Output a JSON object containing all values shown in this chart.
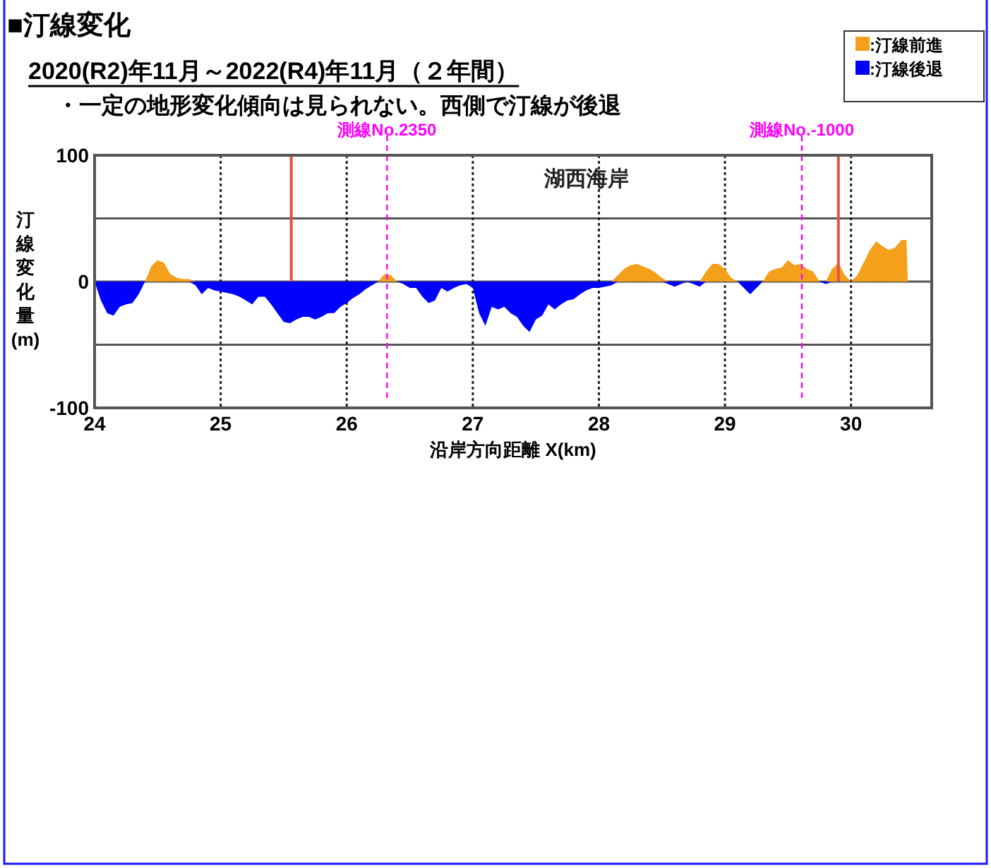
{
  "chart_data": {
    "type": "area",
    "title": "■汀線変化",
    "subtitle": "2020(R2)年11月～2022(R4)年11月（２年間）",
    "annotations": [
      "・一定の地形変化傾向は見られない。西側で汀線が後退",
      "湖西海岸"
    ],
    "xlabel": "沿岸方向距離 X(km)",
    "ylabel": "汀線変化量(m)",
    "x": [
      24,
      24.05,
      24.1,
      24.15,
      24.2,
      24.25,
      24.3,
      24.35,
      24.4,
      24.45,
      24.5,
      24.55,
      24.6,
      24.65,
      24.7,
      24.75,
      24.8,
      24.85,
      24.9,
      24.95,
      25,
      25.05,
      25.1,
      25.15,
      25.2,
      25.25,
      25.3,
      25.35,
      25.4,
      25.45,
      25.5,
      25.55,
      25.6,
      25.65,
      25.7,
      25.75,
      25.8,
      25.85,
      25.9,
      25.95,
      26,
      26.05,
      26.1,
      26.15,
      26.2,
      26.25,
      26.3,
      26.35,
      26.4,
      26.45,
      26.5,
      26.55,
      26.6,
      26.65,
      26.7,
      26.75,
      26.8,
      26.85,
      26.9,
      26.95,
      27,
      27.05,
      27.1,
      27.15,
      27.2,
      27.25,
      27.3,
      27.35,
      27.4,
      27.45,
      27.5,
      27.55,
      27.6,
      27.65,
      27.7,
      27.75,
      27.8,
      27.85,
      27.9,
      27.95,
      28,
      28.05,
      28.1,
      28.15,
      28.2,
      28.25,
      28.3,
      28.35,
      28.4,
      28.45,
      28.5,
      28.55,
      28.6,
      28.65,
      28.7,
      28.75,
      28.8,
      28.85,
      28.9,
      28.95,
      29,
      29.05,
      29.1,
      29.15,
      29.2,
      29.25,
      29.3,
      29.35,
      29.4,
      29.45,
      29.5,
      29.55,
      29.6,
      29.65,
      29.7,
      29.75,
      29.8,
      29.85,
      29.9,
      29.95,
      30,
      30.05,
      30.1,
      30.15,
      30.2,
      30.25,
      30.3,
      30.35,
      30.4,
      30.44,
      30.45
    ],
    "series": [
      {
        "name": ":汀線前進",
        "color": "#f5a01a",
        "values": [
          0,
          0,
          0,
          0,
          0,
          0,
          0,
          0,
          0,
          12,
          17,
          15,
          6,
          3,
          2,
          2,
          0,
          0,
          0,
          0,
          0,
          0,
          0,
          0,
          0,
          0,
          0,
          0,
          0,
          0,
          0,
          0,
          0,
          0,
          0,
          0,
          0,
          0,
          0,
          0,
          0,
          0,
          0,
          0,
          0,
          0,
          6,
          5,
          0,
          0,
          0,
          0,
          0,
          0,
          0,
          0,
          0,
          0,
          0,
          0,
          0,
          0,
          0,
          0,
          0,
          0,
          0,
          0,
          0,
          0,
          0,
          0,
          0,
          0,
          0,
          0,
          0,
          0,
          0,
          0,
          0,
          0,
          0,
          5,
          10,
          13,
          14,
          12,
          10,
          7,
          3,
          0,
          0,
          0,
          0,
          0,
          0,
          8,
          14,
          14,
          10,
          3,
          0,
          0,
          0,
          0,
          0,
          8,
          10,
          11,
          17,
          13,
          14,
          10,
          8,
          0,
          0,
          10,
          15,
          5,
          0,
          5,
          15,
          25,
          32,
          28,
          25,
          27,
          33,
          33,
          0
        ]
      },
      {
        "name": ":汀線後退",
        "color": "#0000ff",
        "values": [
          0,
          -15,
          -25,
          -27,
          -20,
          -18,
          -17,
          -10,
          0,
          0,
          0,
          0,
          0,
          0,
          0,
          0,
          -3,
          -10,
          -5,
          -7,
          -8,
          -9,
          -10,
          -12,
          -15,
          -18,
          -12,
          -12,
          -18,
          -25,
          -32,
          -33,
          -30,
          -28,
          -28,
          -30,
          -28,
          -25,
          -25,
          -20,
          -17,
          -13,
          -10,
          -6,
          -3,
          0,
          0,
          0,
          0,
          -2,
          -5,
          -5,
          -12,
          -17,
          -15,
          -5,
          -8,
          -5,
          -3,
          -2,
          -5,
          -25,
          -35,
          -20,
          -22,
          -20,
          -25,
          -28,
          -35,
          -40,
          -30,
          -27,
          -18,
          -22,
          -18,
          -15,
          -14,
          -10,
          -7,
          -5,
          -5,
          -4,
          -3,
          0,
          0,
          0,
          0,
          0,
          0,
          0,
          0,
          -2,
          -4,
          -2,
          0,
          -2,
          -4,
          0,
          0,
          0,
          0,
          0,
          0,
          -5,
          -10,
          -5,
          0,
          0,
          0,
          0,
          0,
          0,
          0,
          0,
          0,
          0,
          -2,
          0,
          0,
          0,
          0,
          0,
          0,
          0,
          0,
          0,
          0,
          0,
          0,
          0,
          0
        ]
      }
    ],
    "xlim": [
      24,
      30.64
    ],
    "xticks": [
      24,
      25,
      26,
      27,
      28,
      29,
      30
    ],
    "ylim": [
      -100,
      100
    ],
    "yticks": [
      -100,
      {
        "value": -50,
        "label": null
      },
      0,
      {
        "value": 50,
        "label": null
      },
      100
    ],
    "ref_lines": [
      {
        "axis": "x",
        "value": 25.56,
        "color": "#e8504a",
        "line_style": "solid"
      },
      {
        "axis": "x",
        "value": 29.9,
        "color": "#e8504a",
        "line_style": "solid"
      },
      {
        "axis": "x",
        "value": 26.32,
        "label": "測線No.2350",
        "color": "#ff00ff",
        "line_style": "dashed"
      },
      {
        "axis": "x",
        "value": 29.61,
        "label": "測線No.-1000",
        "color": "#ff00ff",
        "line_style": "dashed"
      }
    ],
    "grid": true,
    "legend": "top right"
  }
}
